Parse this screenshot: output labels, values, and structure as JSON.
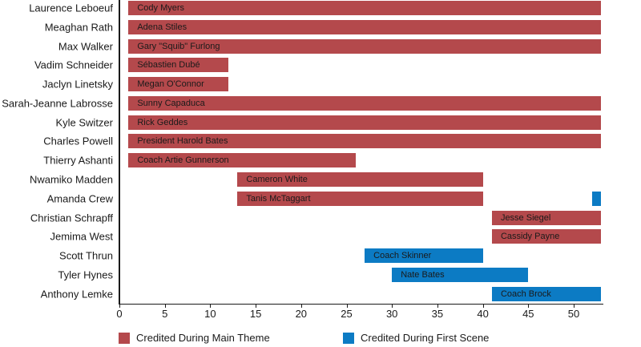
{
  "chart_data": {
    "type": "bar",
    "orientation": "horizontal",
    "title": "",
    "xlabel": "",
    "ylabel": "",
    "xlim": [
      0,
      53.2
    ],
    "grid": false,
    "legend_position": "bottom",
    "x_ticks": [
      "0",
      "5",
      "10",
      "15",
      "20",
      "25",
      "30",
      "35",
      "40",
      "45",
      "50"
    ],
    "x_tick_values": [
      0,
      5,
      10,
      15,
      20,
      25,
      30,
      35,
      40,
      45,
      50
    ],
    "colors": {
      "main_theme": "#b4494c",
      "first_scene": "#0c7bc4"
    },
    "rows": [
      {
        "actor": "Laurence Leboeuf",
        "character": "Cody Myers",
        "segments": [
          {
            "start": 1,
            "end": 53,
            "type": "main_theme"
          }
        ]
      },
      {
        "actor": "Meaghan Rath",
        "character": "Adena Stiles",
        "segments": [
          {
            "start": 1,
            "end": 53,
            "type": "main_theme"
          }
        ]
      },
      {
        "actor": "Max Walker",
        "character": "Gary \"Squib\" Furlong",
        "segments": [
          {
            "start": 1,
            "end": 53,
            "type": "main_theme"
          }
        ]
      },
      {
        "actor": "Vadim Schneider",
        "character": "Sébastien Dubé",
        "segments": [
          {
            "start": 1,
            "end": 12,
            "type": "main_theme"
          }
        ]
      },
      {
        "actor": "Jaclyn Linetsky",
        "character": "Megan O'Connor",
        "segments": [
          {
            "start": 1,
            "end": 12,
            "type": "main_theme"
          }
        ]
      },
      {
        "actor": "Sarah-Jeanne Labrosse",
        "character": "Sunny Capaduca",
        "segments": [
          {
            "start": 1,
            "end": 53,
            "type": "main_theme"
          }
        ]
      },
      {
        "actor": "Kyle Switzer",
        "character": "Rick Geddes",
        "segments": [
          {
            "start": 1,
            "end": 53,
            "type": "main_theme"
          }
        ]
      },
      {
        "actor": "Charles Powell",
        "character": "President Harold Bates",
        "segments": [
          {
            "start": 1,
            "end": 53,
            "type": "main_theme"
          }
        ]
      },
      {
        "actor": "Thierry Ashanti",
        "character": "Coach Artie Gunnerson",
        "segments": [
          {
            "start": 1,
            "end": 26,
            "type": "main_theme"
          }
        ]
      },
      {
        "actor": "Nwamiko Madden",
        "character": "Cameron White",
        "segments": [
          {
            "start": 13,
            "end": 40,
            "type": "main_theme"
          }
        ]
      },
      {
        "actor": "Amanda Crew",
        "character": "Tanis McTaggart",
        "segments": [
          {
            "start": 13,
            "end": 40,
            "type": "main_theme"
          },
          {
            "start": 52,
            "end": 53,
            "type": "first_scene"
          }
        ]
      },
      {
        "actor": "Christian Schrapff",
        "character": "Jesse Siegel",
        "segments": [
          {
            "start": 41,
            "end": 53,
            "type": "main_theme"
          }
        ]
      },
      {
        "actor": "Jemima West",
        "character": "Cassidy Payne",
        "segments": [
          {
            "start": 41,
            "end": 53,
            "type": "main_theme"
          }
        ]
      },
      {
        "actor": "Scott Thrun",
        "character": "Coach Skinner",
        "segments": [
          {
            "start": 27,
            "end": 40,
            "type": "first_scene"
          }
        ]
      },
      {
        "actor": "Tyler Hynes",
        "character": "Nate Bates",
        "segments": [
          {
            "start": 30,
            "end": 45,
            "type": "first_scene"
          }
        ]
      },
      {
        "actor": "Anthony Lemke",
        "character": "Coach Brock",
        "segments": [
          {
            "start": 41,
            "end": 53,
            "type": "first_scene"
          }
        ]
      }
    ],
    "legend": [
      {
        "label": "Credited During Main Theme",
        "type": "main_theme"
      },
      {
        "label": "Credited During First Scene",
        "type": "first_scene"
      }
    ]
  }
}
